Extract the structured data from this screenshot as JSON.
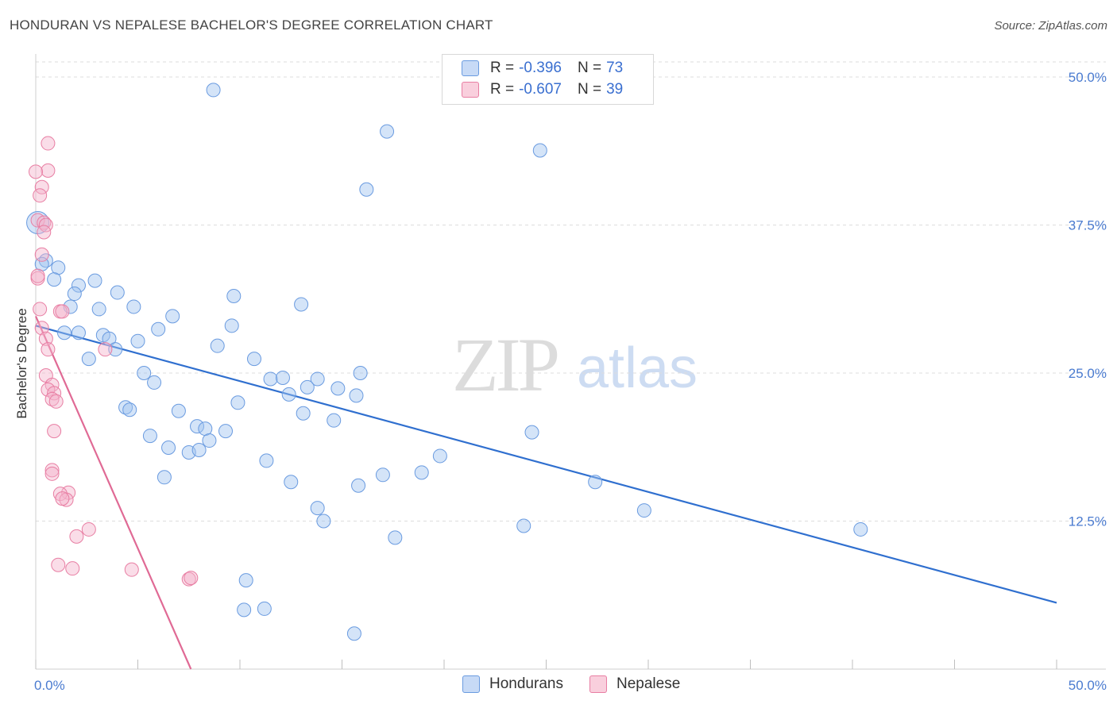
{
  "title": "HONDURAN VS NEPALESE BACHELOR'S DEGREE CORRELATION CHART",
  "source": "Source: ZipAtlas.com",
  "watermark": {
    "zip": "ZIP",
    "atlas": "atlas"
  },
  "legend": {
    "hondurans": {
      "r_label": "R =",
      "r_value": "-0.396",
      "n_label": "N =",
      "n_value": "73"
    },
    "nepalese": {
      "r_label": "R =",
      "r_value": "-0.607",
      "n_label": "N =",
      "n_value": "39"
    }
  },
  "chart_data": {
    "type": "scatter",
    "title": "HONDURAN VS NEPALESE BACHELOR'S DEGREE CORRELATION CHART",
    "xlabel": "",
    "ylabel": "Bachelor's Degree",
    "xlim": [
      0,
      50
    ],
    "ylim": [
      0,
      50
    ],
    "x_tick_labels": [
      "0.0%",
      "50.0%"
    ],
    "y_tick_labels": [
      "12.5%",
      "25.0%",
      "37.5%",
      "50.0%"
    ],
    "y_ticks": [
      12.5,
      25.0,
      37.5,
      50.0
    ],
    "grid": true,
    "legend_position": "top-center",
    "colors": {
      "hondurans": "#6a9be0",
      "nepalese": "#e87ea3",
      "hondurans_line": "#2f6fcf",
      "nepalese_line": "#e06a95"
    },
    "series": [
      {
        "name": "Hondurans",
        "r": -0.396,
        "n": 73,
        "trend": {
          "x0": 0,
          "y0": 29.0,
          "x1": 50,
          "y1": 5.6
        },
        "points": [
          [
            8.7,
            48.9
          ],
          [
            17.2,
            45.4
          ],
          [
            24.7,
            43.8
          ],
          [
            16.2,
            40.5
          ],
          [
            0.1,
            37.7
          ],
          [
            0.5,
            34.5
          ],
          [
            1.1,
            33.9
          ],
          [
            0.9,
            32.9
          ],
          [
            2.1,
            32.4
          ],
          [
            2.9,
            32.8
          ],
          [
            1.9,
            31.7
          ],
          [
            4.0,
            31.8
          ],
          [
            9.7,
            31.5
          ],
          [
            13.0,
            30.8
          ],
          [
            1.7,
            30.6
          ],
          [
            3.1,
            30.4
          ],
          [
            4.8,
            30.6
          ],
          [
            6.7,
            29.8
          ],
          [
            9.6,
            29.0
          ],
          [
            6.0,
            28.7
          ],
          [
            1.4,
            28.4
          ],
          [
            2.1,
            28.4
          ],
          [
            3.3,
            28.2
          ],
          [
            3.6,
            27.9
          ],
          [
            5.0,
            27.7
          ],
          [
            8.9,
            27.3
          ],
          [
            3.9,
            27.0
          ],
          [
            10.7,
            26.2
          ],
          [
            2.6,
            26.2
          ],
          [
            5.3,
            25.0
          ],
          [
            11.5,
            24.5
          ],
          [
            12.1,
            24.6
          ],
          [
            13.8,
            24.5
          ],
          [
            15.9,
            25.0
          ],
          [
            5.8,
            24.2
          ],
          [
            13.3,
            23.8
          ],
          [
            14.8,
            23.7
          ],
          [
            12.4,
            23.2
          ],
          [
            15.7,
            23.1
          ],
          [
            9.9,
            22.5
          ],
          [
            4.4,
            22.1
          ],
          [
            4.6,
            21.9
          ],
          [
            7.0,
            21.8
          ],
          [
            13.1,
            21.6
          ],
          [
            14.6,
            21.0
          ],
          [
            7.9,
            20.5
          ],
          [
            8.3,
            20.3
          ],
          [
            9.3,
            20.1
          ],
          [
            24.3,
            20.0
          ],
          [
            5.6,
            19.7
          ],
          [
            8.5,
            19.3
          ],
          [
            6.5,
            18.7
          ],
          [
            7.5,
            18.3
          ],
          [
            8.0,
            18.5
          ],
          [
            11.3,
            17.6
          ],
          [
            19.8,
            18.0
          ],
          [
            18.9,
            16.6
          ],
          [
            6.3,
            16.2
          ],
          [
            17.0,
            16.4
          ],
          [
            27.4,
            15.8
          ],
          [
            12.5,
            15.8
          ],
          [
            15.8,
            15.5
          ],
          [
            13.8,
            13.6
          ],
          [
            29.8,
            13.4
          ],
          [
            14.1,
            12.5
          ],
          [
            23.9,
            12.1
          ],
          [
            40.4,
            11.8
          ],
          [
            17.6,
            11.1
          ],
          [
            10.3,
            7.5
          ],
          [
            10.2,
            5.0
          ],
          [
            11.2,
            5.1
          ],
          [
            15.6,
            3.0
          ],
          [
            0.3,
            34.2
          ]
        ]
      },
      {
        "name": "Nepalese",
        "r": -0.607,
        "n": 39,
        "trend": {
          "x0": 0,
          "y0": 29.8,
          "x1": 7.6,
          "y1": 0
        },
        "points": [
          [
            0.6,
            44.4
          ],
          [
            0.6,
            42.1
          ],
          [
            0.0,
            42.0
          ],
          [
            0.3,
            40.7
          ],
          [
            0.2,
            40.0
          ],
          [
            0.1,
            37.9
          ],
          [
            0.4,
            37.7
          ],
          [
            0.5,
            37.5
          ],
          [
            0.3,
            35.0
          ],
          [
            0.1,
            33.0
          ],
          [
            0.2,
            30.4
          ],
          [
            1.2,
            30.2
          ],
          [
            1.3,
            30.2
          ],
          [
            0.3,
            28.8
          ],
          [
            0.5,
            27.9
          ],
          [
            0.6,
            27.0
          ],
          [
            3.4,
            27.0
          ],
          [
            0.5,
            24.8
          ],
          [
            0.8,
            24.0
          ],
          [
            0.6,
            23.6
          ],
          [
            0.9,
            23.3
          ],
          [
            0.8,
            22.8
          ],
          [
            1.0,
            22.6
          ],
          [
            0.9,
            20.1
          ],
          [
            0.8,
            16.8
          ],
          [
            0.8,
            16.5
          ],
          [
            1.6,
            14.9
          ],
          [
            1.2,
            14.8
          ],
          [
            1.5,
            14.3
          ],
          [
            1.3,
            14.4
          ],
          [
            2.6,
            11.8
          ],
          [
            2.0,
            11.2
          ],
          [
            1.1,
            8.8
          ],
          [
            1.8,
            8.5
          ],
          [
            4.7,
            8.4
          ],
          [
            7.5,
            7.6
          ],
          [
            7.6,
            7.7
          ],
          [
            0.1,
            33.2
          ],
          [
            0.4,
            36.9
          ]
        ]
      }
    ]
  },
  "bottom_legend": {
    "hondurans": "Hondurans",
    "nepalese": "Nepalese"
  }
}
